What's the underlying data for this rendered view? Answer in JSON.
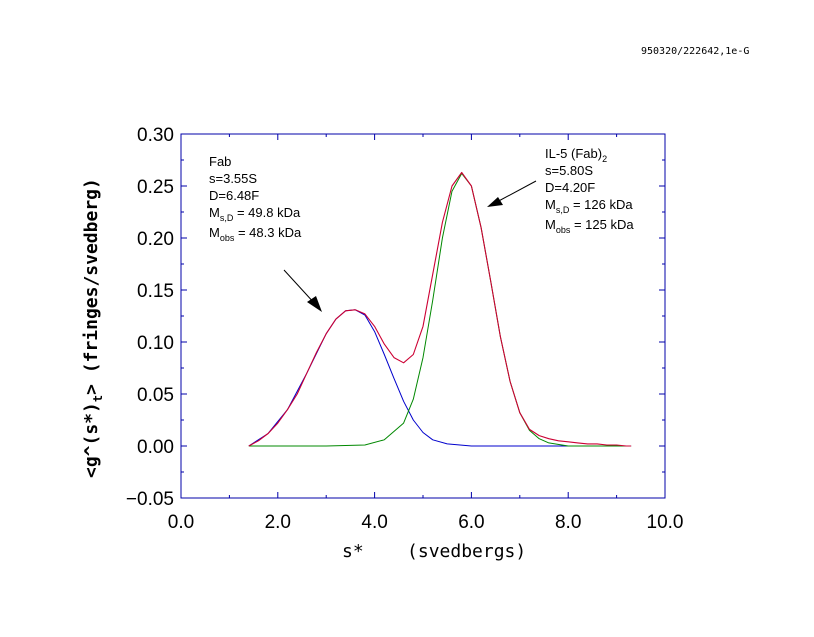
{
  "header_text": "950320/222642,1e-G",
  "chart_data": {
    "type": "line",
    "xlabel": "s*    (svedbergs)",
    "ylabel": "<g^(s*)t> (fringes/svedberg)",
    "ylabel_parts": {
      "pre": "<g^(s*)",
      "sub": "t",
      "post": "> (fringes/svedberg)"
    },
    "xlim": [
      0,
      10
    ],
    "ylim": [
      -0.05,
      0.3
    ],
    "x_ticks": [
      "0.0",
      "2.0",
      "4.0",
      "6.0",
      "8.0",
      "10.0"
    ],
    "y_ticks": [
      "0.30",
      "0.25",
      "0.20",
      "0.15",
      "0.10",
      "0.05",
      "0.00",
      "−0.05"
    ],
    "series": [
      {
        "color": "#cc0033",
        "x": [
          1.4,
          1.6,
          1.8,
          2.0,
          2.2,
          2.4,
          2.6,
          2.8,
          3.0,
          3.2,
          3.4,
          3.6,
          3.8,
          4.0,
          4.2,
          4.4,
          4.6,
          4.8,
          5.0,
          5.2,
          5.4,
          5.6,
          5.8,
          6.0,
          6.2,
          6.4,
          6.6,
          6.8,
          7.0,
          7.2,
          7.4,
          7.6,
          7.8,
          8.0,
          8.2,
          8.4,
          8.6,
          8.8,
          9.0,
          9.2,
          9.3
        ],
        "y": [
          0.0,
          0.005,
          0.012,
          0.022,
          0.035,
          0.05,
          0.07,
          0.09,
          0.108,
          0.122,
          0.13,
          0.131,
          0.127,
          0.115,
          0.098,
          0.085,
          0.08,
          0.088,
          0.115,
          0.165,
          0.215,
          0.25,
          0.263,
          0.25,
          0.21,
          0.158,
          0.105,
          0.062,
          0.032,
          0.016,
          0.01,
          0.007,
          0.005,
          0.004,
          0.003,
          0.002,
          0.002,
          0.001,
          0.001,
          0.0,
          0.0
        ]
      },
      {
        "color": "#0000cc",
        "x": [
          1.4,
          1.8,
          2.2,
          2.6,
          3.0,
          3.2,
          3.4,
          3.6,
          3.8,
          4.0,
          4.2,
          4.4,
          4.6,
          4.8,
          5.0,
          5.2,
          5.5,
          6.0,
          6.5,
          7.0,
          8.0,
          9.3
        ],
        "y": [
          0.0,
          0.012,
          0.035,
          0.07,
          0.108,
          0.122,
          0.13,
          0.131,
          0.126,
          0.11,
          0.088,
          0.065,
          0.043,
          0.025,
          0.013,
          0.006,
          0.002,
          0.0,
          0.0,
          0.0,
          0.0,
          0.0
        ]
      },
      {
        "color": "#008800",
        "x": [
          1.4,
          3.0,
          3.8,
          4.2,
          4.6,
          4.8,
          5.0,
          5.2,
          5.4,
          5.6,
          5.8,
          6.0,
          6.2,
          6.4,
          6.6,
          6.8,
          7.0,
          7.2,
          7.4,
          7.6,
          8.0,
          9.3
        ],
        "y": [
          0.0,
          0.0,
          0.001,
          0.006,
          0.022,
          0.045,
          0.085,
          0.14,
          0.2,
          0.245,
          0.262,
          0.25,
          0.21,
          0.158,
          0.105,
          0.062,
          0.032,
          0.015,
          0.007,
          0.003,
          0.0,
          0.0
        ]
      }
    ],
    "annotations": [
      {
        "lines": [
          {
            "text": "Fab"
          },
          {
            "text": "s=3.55S"
          },
          {
            "text": "D=6.48F"
          },
          {
            "pre": "M",
            "sub": "s,D",
            "post": " = 49.8 kDa"
          },
          {
            "pre": "M",
            "sub": "obs",
            "post": " = 48.3 kDa"
          }
        ]
      },
      {
        "lines": [
          {
            "pre": "IL-5 (Fab)",
            "sub": "2",
            "post": ""
          },
          {
            "text": "s=5.80S"
          },
          {
            "text": "D=4.20F"
          },
          {
            "pre": "M",
            "sub": "s,D",
            "post": " = 126 kDa"
          },
          {
            "pre": "M",
            "sub": "obs",
            "post": " = 125 kDa"
          }
        ]
      }
    ]
  }
}
